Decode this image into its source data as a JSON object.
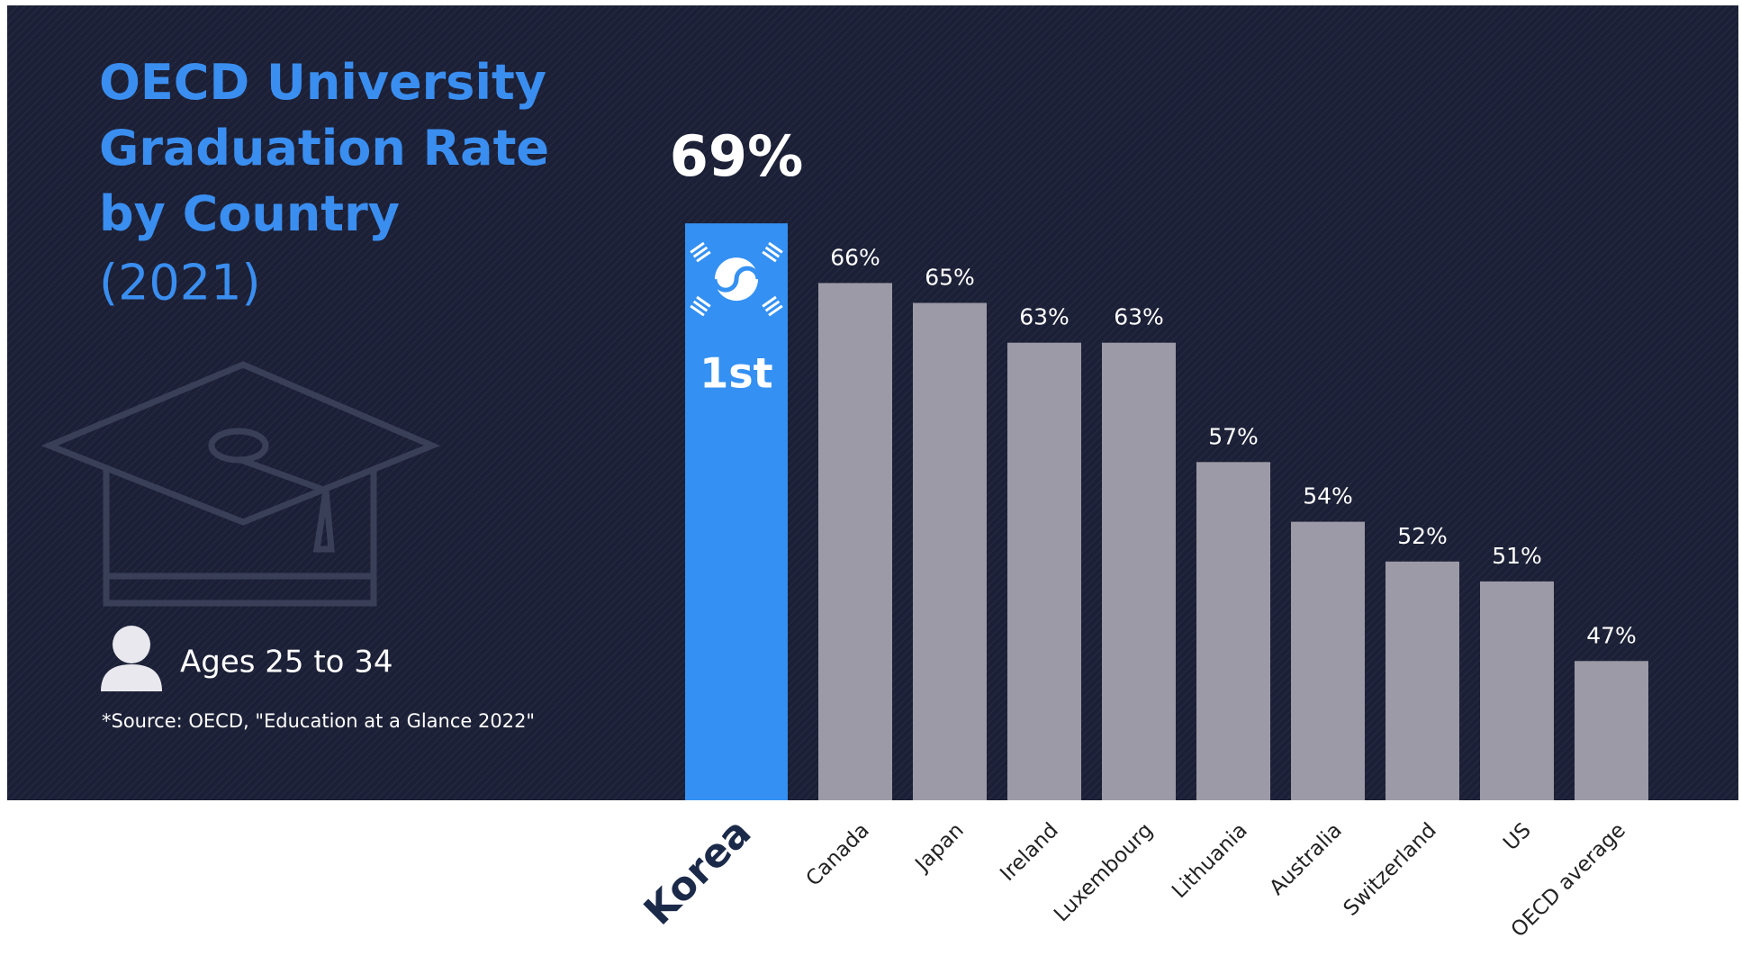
{
  "chart_data": {
    "type": "bar",
    "title": "OECD University Graduation Rate by Country",
    "subtitle": "(2021)",
    "annotations": {
      "rank": "1st",
      "ages": "Ages 25 to 34",
      "source": "*Source: OECD, \"Education at a Glance 2022\""
    },
    "categories": [
      "Korea",
      "Canada",
      "Japan",
      "Ireland",
      "Luxembourg",
      "Lithuania",
      "Australia",
      "Switzerland",
      "US",
      "OECD average"
    ],
    "values": [
      69,
      66,
      65,
      63,
      63,
      57,
      54,
      52,
      51,
      47
    ],
    "value_labels": [
      "69%",
      "66%",
      "65%",
      "63%",
      "63%",
      "57%",
      "54%",
      "52%",
      "51%",
      "47%"
    ],
    "colors": [
      "#3490f2",
      "#9c9aa6",
      "#9c9aa6",
      "#9c9aa6",
      "#9c9aa6",
      "#9c9aa6",
      "#9c9aa6",
      "#9c9aa6",
      "#9c9aa6",
      "#9c9aa6"
    ],
    "ylim": [
      40,
      70
    ]
  }
}
